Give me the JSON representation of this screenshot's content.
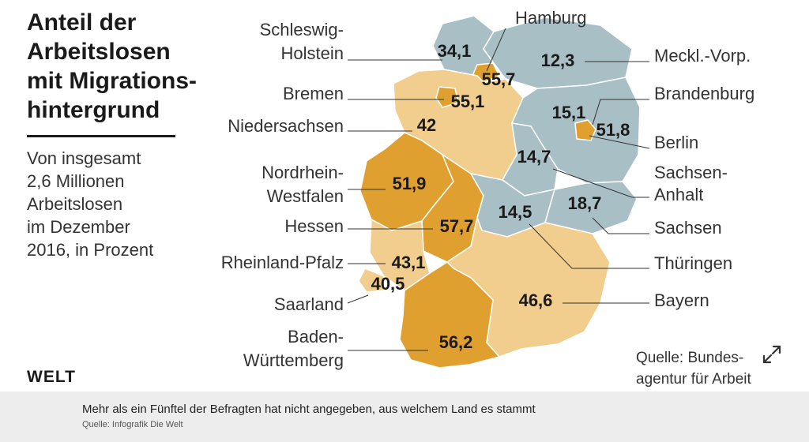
{
  "graphic": {
    "title": "Anteil der\nArbeitslosen\nmit Migrations-\nhintergrund",
    "subtitle": "Von insgesamt\n2,6 Millionen\nArbeitslosen\nim Dezember\n2016, in Prozent",
    "logo": "WELT",
    "source": "Quelle: Bundes-\nagentur für Arbeit"
  },
  "colors": {
    "low": "#a9bfc6",
    "mid": "#f1cd8e",
    "high": "#e0a030",
    "border": "#ffffff",
    "leader": "#333333"
  },
  "states": [
    {
      "id": "SH",
      "name": [
        "Schleswig-",
        "Holstein"
      ],
      "value": "34,1",
      "color": "low"
    },
    {
      "id": "HH",
      "name": [
        "Hamburg"
      ],
      "value": "55,7",
      "color": "high"
    },
    {
      "id": "MV",
      "name": [
        "Meckl.-Vorp."
      ],
      "value": "12,3",
      "color": "low"
    },
    {
      "id": "HB",
      "name": [
        "Bremen"
      ],
      "value": "55,1",
      "color": "high"
    },
    {
      "id": "BB",
      "name": [
        "Brandenburg"
      ],
      "value": "15,1",
      "color": "low"
    },
    {
      "id": "NI",
      "name": [
        "Niedersachsen"
      ],
      "value": "42",
      "color": "mid"
    },
    {
      "id": "BE",
      "name": [
        "Berlin"
      ],
      "value": "51,8",
      "color": "high"
    },
    {
      "id": "ST",
      "name": [
        "Sachsen-",
        "Anhalt"
      ],
      "value": "14,7",
      "color": "low"
    },
    {
      "id": "NW",
      "name": [
        "Nordrhein-",
        "Westfalen"
      ],
      "value": "51,9",
      "color": "high"
    },
    {
      "id": "SN",
      "name": [
        "Sachsen"
      ],
      "value": "18,7",
      "color": "low"
    },
    {
      "id": "HE",
      "name": [
        "Hessen"
      ],
      "value": "57,7",
      "color": "high"
    },
    {
      "id": "TH",
      "name": [
        "Thüringen"
      ],
      "value": "14,5",
      "color": "low"
    },
    {
      "id": "RP",
      "name": [
        "Rheinland-Pfalz"
      ],
      "value": "43,1",
      "color": "mid"
    },
    {
      "id": "SL",
      "name": [
        "Saarland"
      ],
      "value": "40,5",
      "color": "mid"
    },
    {
      "id": "BY",
      "name": [
        "Bayern"
      ],
      "value": "46,6",
      "color": "mid"
    },
    {
      "id": "BW",
      "name": [
        "Baden-",
        "Württemberg"
      ],
      "value": "56,2",
      "color": "high"
    }
  ],
  "caption": {
    "text": "Mehr als ein Fünftel der Befragten hat nicht angegeben, aus welchem Land es stammt",
    "source": "Quelle: Infografik Die Welt"
  }
}
